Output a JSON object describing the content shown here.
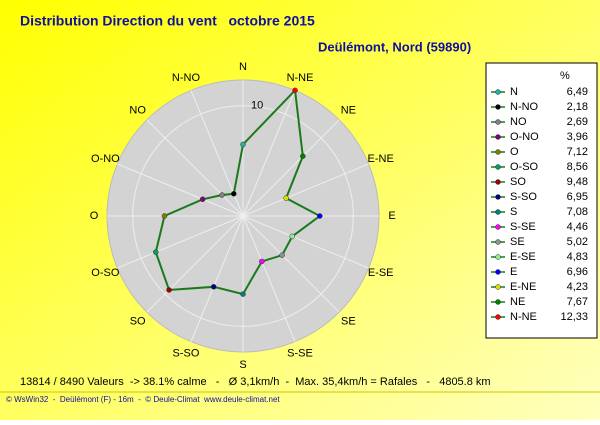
{
  "chart_data": {
    "type": "radar",
    "title": "Distribution Direction du vent   octobre 2015",
    "subtitle": "Deülémont, Nord (59890)",
    "categories": [
      "N",
      "N-NO",
      "NO",
      "O-NO",
      "O",
      "O-SO",
      "SO",
      "S-SO",
      "S",
      "S-SE",
      "SE",
      "E-SE",
      "E",
      "E-NE",
      "NE",
      "N-NE"
    ],
    "values": [
      6.49,
      2.18,
      2.69,
      3.96,
      7.12,
      8.56,
      9.48,
      6.95,
      7.08,
      4.46,
      5.02,
      4.83,
      6.96,
      4.23,
      7.67,
      12.33
    ],
    "value_labels": [
      "6,49",
      "2,18",
      "2,69",
      "3,96",
      "7,12",
      "8,56",
      "9,48",
      "6,95",
      "7,08",
      "4,46",
      "5,02",
      "4,83",
      "6,96",
      "4,23",
      "7,67",
      "12,33"
    ],
    "point_colors": [
      "#20b2aa",
      "#000000",
      "#808080",
      "#800080",
      "#808000",
      "#00a060",
      "#a00000",
      "#000080",
      "#008080",
      "#ff00ff",
      "#909090",
      "#90ee90",
      "#0000ff",
      "#dddd00",
      "#008000",
      "#ff0000"
    ],
    "color": "#1a7a1a",
    "rlim": [
      0,
      12.33
    ],
    "rticks": [
      10
    ],
    "legend_header": "%",
    "annotations": [
      "13814 / 8490 Valeurs  -> 38.1% calme   -   Ø 3,1km/h  -  Max. 35,4km/h = Rafales   -   4805.8 km",
      "© WsWin32  -  Deülémont (F) - 16m  -  © Deule-Climat  www.deule-climat.net"
    ]
  }
}
